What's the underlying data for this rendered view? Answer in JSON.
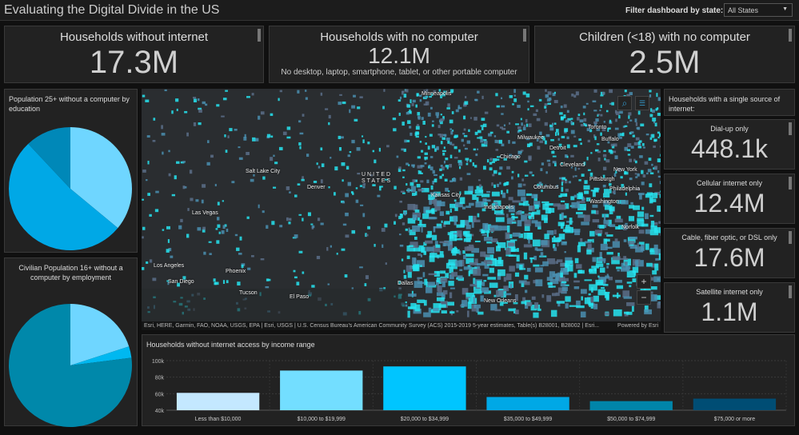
{
  "header": {
    "title": "Evaluating the Digital Divide in the US",
    "filter_label": "Filter dashboard by state:",
    "filter_value": "All States"
  },
  "kpis": [
    {
      "title": "Households without internet",
      "value": "17.3M",
      "subtitle": ""
    },
    {
      "title": "Households with no computer",
      "value": "12.1M",
      "subtitle": "No desktop, laptop, smartphone, tablet, or other portable computer"
    },
    {
      "title": "Children (<18) with no computer",
      "value": "2.5M",
      "subtitle": ""
    }
  ],
  "pies": [
    {
      "title": "Population 25+ without a computer by education",
      "slices": [
        {
          "value": 36,
          "color": "#6fd6ff"
        },
        {
          "value": 52,
          "color": "#00a8e6"
        },
        {
          "value": 12,
          "color": "#0088b8"
        }
      ]
    },
    {
      "title": "Civilian Population 16+ without a computer by employment",
      "slices": [
        {
          "value": 20,
          "color": "#6fd6ff"
        },
        {
          "value": 3,
          "color": "#00b8f0"
        },
        {
          "value": 77,
          "color": "#0088aa"
        }
      ]
    }
  ],
  "side": {
    "title": "Households with a single source of internet:",
    "items": [
      {
        "label": "Dial-up only",
        "value": "448.1k"
      },
      {
        "label": "Cellular internet only",
        "value": "12.4M"
      },
      {
        "label": "Cable, fiber optic, or DSL only",
        "value": "17.6M"
      },
      {
        "label": "Satellite internet only",
        "value": "1.1M"
      }
    ]
  },
  "map": {
    "attribution": "Esri, HERE, Garmin, FAO, NOAA, USGS, EPA | Esri, USGS | U.S. Census Bureau's American Community Survey (ACS) 2015-2019 5-year estimates, Table(s) B28001, B28002 | Esri...",
    "powered": "Powered by Esri",
    "zoom_in": "+",
    "zoom_out": "−",
    "cities": [
      "Minneapolis",
      "Toronto",
      "Milwaukee",
      "Buffalo",
      "Detroit",
      "Chicago",
      "Cleveland",
      "Salt Lake City",
      "Denver",
      "UNITED STATES",
      "Kansas City",
      "Indianapolis",
      "Columbus",
      "Pittsburgh",
      "Philadelphia",
      "Washington",
      "New York",
      "Las Vegas",
      "Los Angeles",
      "San Diego",
      "Phoenix",
      "Tucson",
      "El Paso",
      "Dallas",
      "New Orleans",
      "Norfolk"
    ]
  },
  "chart_data": {
    "type": "bar",
    "title": "Households without internet access by income range",
    "categories": [
      "Less than $10,000",
      "$10,000 to $19,999",
      "$20,000 to $34,999",
      "$35,000 to $49,999",
      "$50,000 to $74,999",
      "$75,000 or more"
    ],
    "values": [
      61000,
      88000,
      93000,
      56000,
      51000,
      54000
    ],
    "colors": [
      "#c4e8ff",
      "#73deff",
      "#00c5ff",
      "#00a8e6",
      "#0085aa",
      "#004d74"
    ],
    "ylim": [
      40000,
      100000
    ],
    "yticks": [
      "40k",
      "60k",
      "80k",
      "100k"
    ],
    "grid": true
  }
}
